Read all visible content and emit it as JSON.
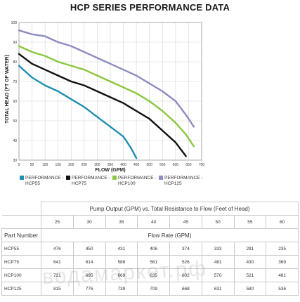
{
  "chart_data": {
    "type": "line",
    "title": "HCP SERIES PERFORMANCE DATA",
    "xlabel": "FLOW (GPM)",
    "ylabel": "TOTAL HEAD (FT OF WATER)",
    "xlim": [
      0,
      700
    ],
    "ylim": [
      30,
      100
    ],
    "x_ticks": [
      0,
      50,
      100,
      150,
      200,
      250,
      300,
      350,
      400,
      450,
      500,
      550,
      600,
      650,
      700
    ],
    "y_ticks": [
      30,
      40,
      50,
      60,
      70,
      80,
      90,
      100
    ],
    "grid": true,
    "legend_position": "bottom",
    "series": [
      {
        "name": "PERFORMANCE - HCP55",
        "color": "#1d8fb0",
        "points": [
          [
            0,
            78
          ],
          [
            50,
            72
          ],
          [
            100,
            68
          ],
          [
            150,
            65
          ],
          [
            200,
            61
          ],
          [
            250,
            57
          ],
          [
            300,
            52
          ],
          [
            350,
            47
          ],
          [
            400,
            42
          ],
          [
            430,
            36
          ],
          [
            450,
            31
          ]
        ]
      },
      {
        "name": "PERFORMANCE - HCP75",
        "color": "#111111",
        "points": [
          [
            0,
            84
          ],
          [
            50,
            79
          ],
          [
            100,
            76
          ],
          [
            150,
            73
          ],
          [
            200,
            70
          ],
          [
            250,
            68
          ],
          [
            300,
            65
          ],
          [
            350,
            62
          ],
          [
            400,
            59
          ],
          [
            450,
            55
          ],
          [
            500,
            51
          ],
          [
            550,
            45
          ],
          [
            600,
            39
          ],
          [
            640,
            32
          ]
        ]
      },
      {
        "name": "PERFORMANCE - HCP100",
        "color": "#8cc63e",
        "points": [
          [
            0,
            88
          ],
          [
            50,
            85
          ],
          [
            100,
            83
          ],
          [
            150,
            80
          ],
          [
            200,
            78
          ],
          [
            250,
            76
          ],
          [
            300,
            73
          ],
          [
            350,
            70
          ],
          [
            400,
            67
          ],
          [
            450,
            64
          ],
          [
            500,
            60
          ],
          [
            550,
            55
          ],
          [
            600,
            49
          ],
          [
            640,
            43
          ],
          [
            670,
            37
          ]
        ]
      },
      {
        "name": "PERFORMANCE - HCP125",
        "color": "#8e8cc0",
        "points": [
          [
            0,
            96
          ],
          [
            50,
            94
          ],
          [
            100,
            93
          ],
          [
            150,
            90
          ],
          [
            200,
            88
          ],
          [
            250,
            85
          ],
          [
            300,
            82
          ],
          [
            350,
            79
          ],
          [
            400,
            76
          ],
          [
            450,
            73
          ],
          [
            500,
            69
          ],
          [
            550,
            65
          ],
          [
            600,
            60
          ],
          [
            640,
            53
          ],
          [
            670,
            47
          ]
        ]
      }
    ]
  },
  "legend": [
    {
      "line1": "PERFORMANCE -",
      "line2": "HCP55",
      "color": "#1d8fb0"
    },
    {
      "line1": "PERFORMANCE -",
      "line2": "HCP75",
      "color": "#111111"
    },
    {
      "line1": "PERFORMANCE -",
      "line2": "HCP100",
      "color": "#8cc63e"
    },
    {
      "line1": "PERFORMANCE -",
      "line2": "HCP125",
      "color": "#8e8cc0"
    }
  ],
  "table": {
    "header_main": "Pump Output (GPM) vs. Total Resistance to Flow (Feet of Head)",
    "head_values": [
      "25",
      "30",
      "35",
      "40",
      "45",
      "50",
      "55",
      "60"
    ],
    "part_number_label": "Part Number",
    "flow_rate_label": "Flow Rate (GPM)",
    "rows": [
      {
        "part": "HCP55",
        "values": [
          "476",
          "450",
          "431",
          "406",
          "374",
          "333",
          "291",
          "235"
        ]
      },
      {
        "part": "HCP75",
        "values": [
          "641",
          "614",
          "588",
          "561",
          "526",
          "481",
          "430",
          "369"
        ]
      },
      {
        "part": "HCP100",
        "values": [
          "721",
          "695",
          "669",
          "635",
          "602",
          "570",
          "521",
          "461"
        ]
      },
      {
        "part": "HCP125",
        "values": [
          "815",
          "776",
          "739",
          "709",
          "668",
          "631",
          "580",
          "536"
        ]
      }
    ]
  },
  "watermark": "водамаркет.рф"
}
